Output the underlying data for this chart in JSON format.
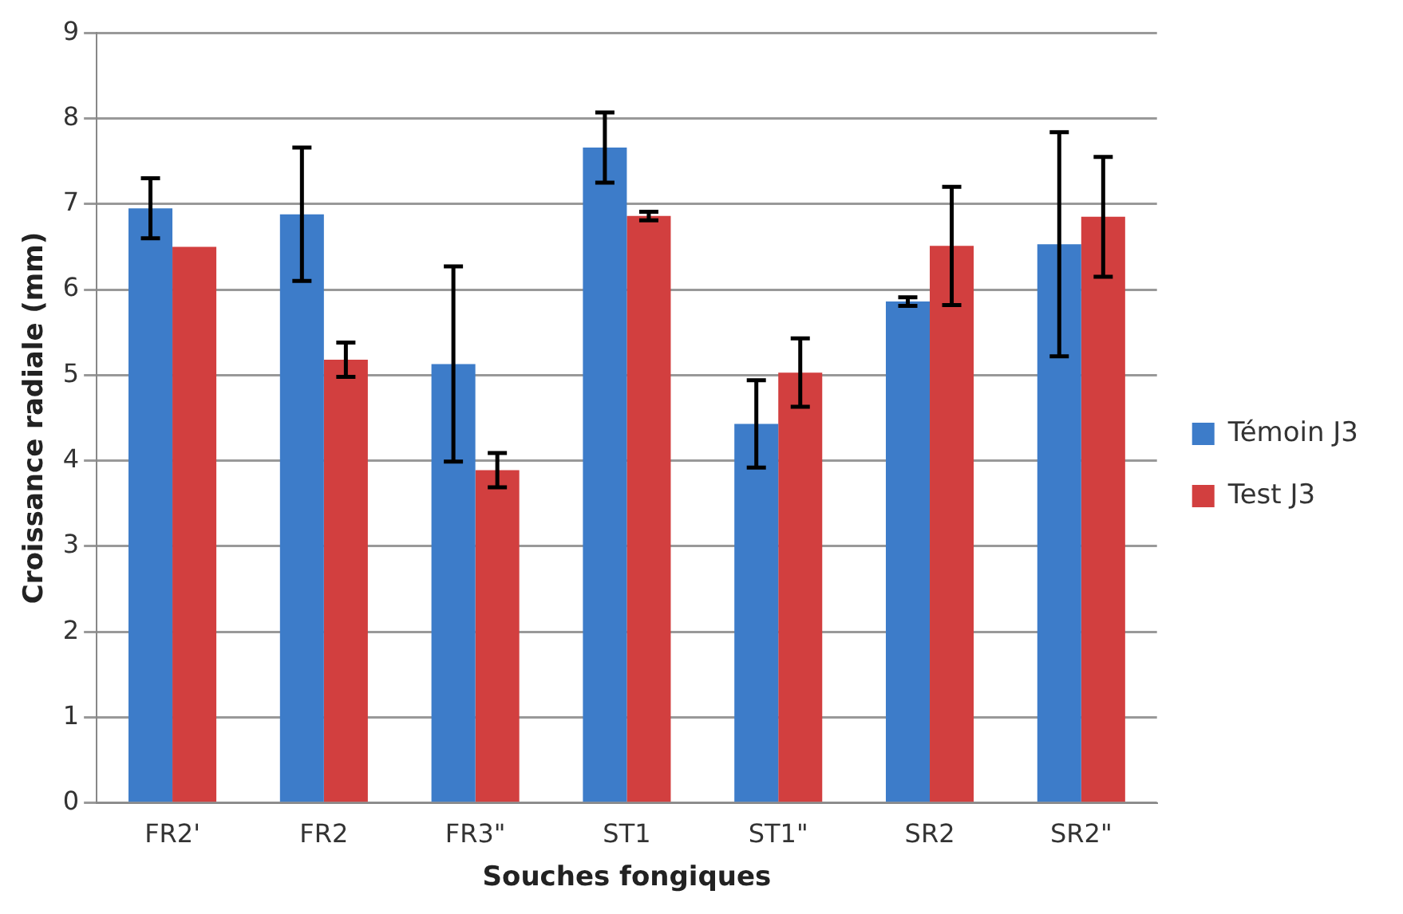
{
  "chart_data": {
    "type": "bar",
    "xlabel": "Souches fongiques",
    "ylabel": "Croissance radiale (mm)",
    "categories": [
      "FR2'",
      "FR2",
      "FR3\"",
      "ST1",
      "ST1\"",
      "SR2",
      "SR2\""
    ],
    "series": [
      {
        "name": "Témoin J3",
        "color": "#3d7cc9",
        "values": [
          6.95,
          6.88,
          5.13,
          7.66,
          4.43,
          5.86,
          6.53
        ],
        "errors": [
          0.35,
          0.78,
          1.14,
          0.41,
          0.51,
          0.05,
          1.31
        ]
      },
      {
        "name": "Test J3",
        "color": "#d23f3f",
        "values": [
          6.5,
          5.18,
          3.89,
          6.86,
          5.03,
          6.51,
          6.85
        ],
        "errors": [
          null,
          0.2,
          0.2,
          0.05,
          0.4,
          0.69,
          0.7
        ]
      }
    ],
    "ylim": [
      0,
      9
    ],
    "yticks": [
      0,
      1,
      2,
      3,
      4,
      5,
      6,
      7,
      8,
      9
    ],
    "grid": "y",
    "legend": "right"
  }
}
